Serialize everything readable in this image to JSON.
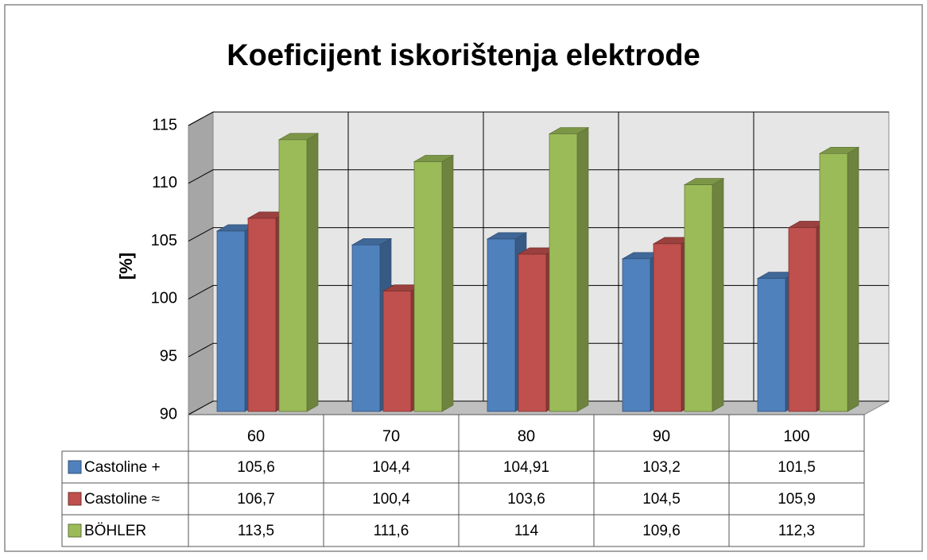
{
  "chart_data": {
    "type": "bar3d",
    "title": "Koeficijent iskorištenja elektrode",
    "ylabel": "[%]",
    "categories": [
      "60",
      "70",
      "80",
      "90",
      "100"
    ],
    "series": [
      {
        "name": "Castoline +",
        "color": "#4f81bd",
        "values": [
          105.6,
          104.4,
          104.91,
          103.2,
          101.5
        ],
        "value_labels": [
          "105,6",
          "104,4",
          "104,91",
          "103,2",
          "101,5"
        ]
      },
      {
        "name": "Castoline ≈",
        "color": "#c0504d",
        "values": [
          106.7,
          100.4,
          103.6,
          104.5,
          105.9
        ],
        "value_labels": [
          "106,7",
          "100,4",
          "103,6",
          "104,5",
          "105,9"
        ]
      },
      {
        "name": "BÖHLER",
        "color": "#9bbb59",
        "values": [
          113.5,
          111.6,
          114,
          109.6,
          112.3
        ],
        "value_labels": [
          "113,5",
          "111,6",
          "114",
          "109,6",
          "112,3"
        ]
      }
    ],
    "ylim": [
      90,
      115
    ],
    "yticks": [
      90,
      95,
      100,
      105,
      110,
      115
    ],
    "grid": true
  }
}
